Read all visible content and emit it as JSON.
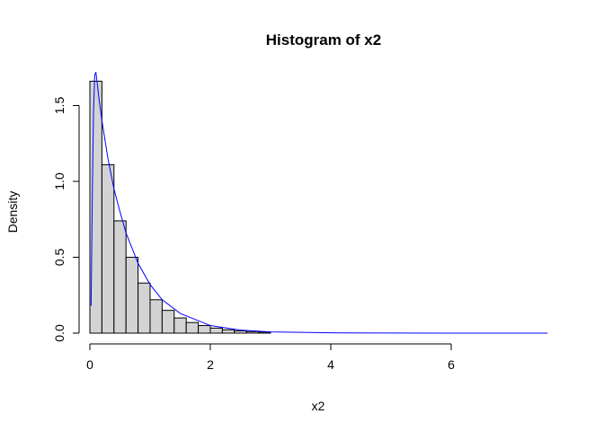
{
  "chart_data": {
    "type": "bar",
    "title": "Histogram of x2",
    "xlabel": "x2",
    "ylabel": "Density",
    "xlim": [
      0,
      7.7
    ],
    "ylim": [
      0,
      1.75
    ],
    "x_ticks": [
      0,
      2,
      4,
      6
    ],
    "x_tick_labels": [
      "0",
      "2",
      "4",
      "6"
    ],
    "y_ticks": [
      0,
      0.5,
      1.0,
      1.5
    ],
    "y_tick_labels": [
      "0.0",
      "0.5",
      "1.0",
      "1.5"
    ],
    "bin_width": 0.2,
    "bins": [
      {
        "start": 0.0,
        "end": 0.2,
        "density": 1.66
      },
      {
        "start": 0.2,
        "end": 0.4,
        "density": 1.11
      },
      {
        "start": 0.4,
        "end": 0.6,
        "density": 0.74
      },
      {
        "start": 0.6,
        "end": 0.8,
        "density": 0.5
      },
      {
        "start": 0.8,
        "end": 1.0,
        "density": 0.33
      },
      {
        "start": 1.0,
        "end": 1.2,
        "density": 0.22
      },
      {
        "start": 1.2,
        "end": 1.4,
        "density": 0.15
      },
      {
        "start": 1.4,
        "end": 1.6,
        "density": 0.1
      },
      {
        "start": 1.6,
        "end": 1.8,
        "density": 0.07
      },
      {
        "start": 1.8,
        "end": 2.0,
        "density": 0.05
      },
      {
        "start": 2.0,
        "end": 2.2,
        "density": 0.033
      },
      {
        "start": 2.2,
        "end": 2.4,
        "density": 0.022
      },
      {
        "start": 2.4,
        "end": 2.6,
        "density": 0.015
      },
      {
        "start": 2.6,
        "end": 2.8,
        "density": 0.01
      },
      {
        "start": 2.8,
        "end": 3.0,
        "density": 0.007
      },
      {
        "start": 3.0,
        "end": 3.2,
        "density": 0.0
      }
    ],
    "density_curve": {
      "color": "#0000ff",
      "x": [
        0.02,
        0.04,
        0.06,
        0.08,
        0.1,
        0.15,
        0.2,
        0.3,
        0.4,
        0.5,
        0.6,
        0.8,
        1.0,
        1.2,
        1.5,
        2.0,
        2.5,
        3.0,
        4.0,
        5.0,
        6.0,
        7.0,
        7.6
      ],
      "y": [
        0.18,
        0.9,
        1.45,
        1.7,
        1.72,
        1.55,
        1.4,
        1.15,
        0.95,
        0.8,
        0.66,
        0.46,
        0.32,
        0.22,
        0.13,
        0.05,
        0.02,
        0.008,
        0.002,
        0.0005,
        0.0001,
        0.0,
        0.0
      ]
    },
    "bar_fill": "#d3d3d3",
    "grid": false,
    "legend": "none"
  }
}
